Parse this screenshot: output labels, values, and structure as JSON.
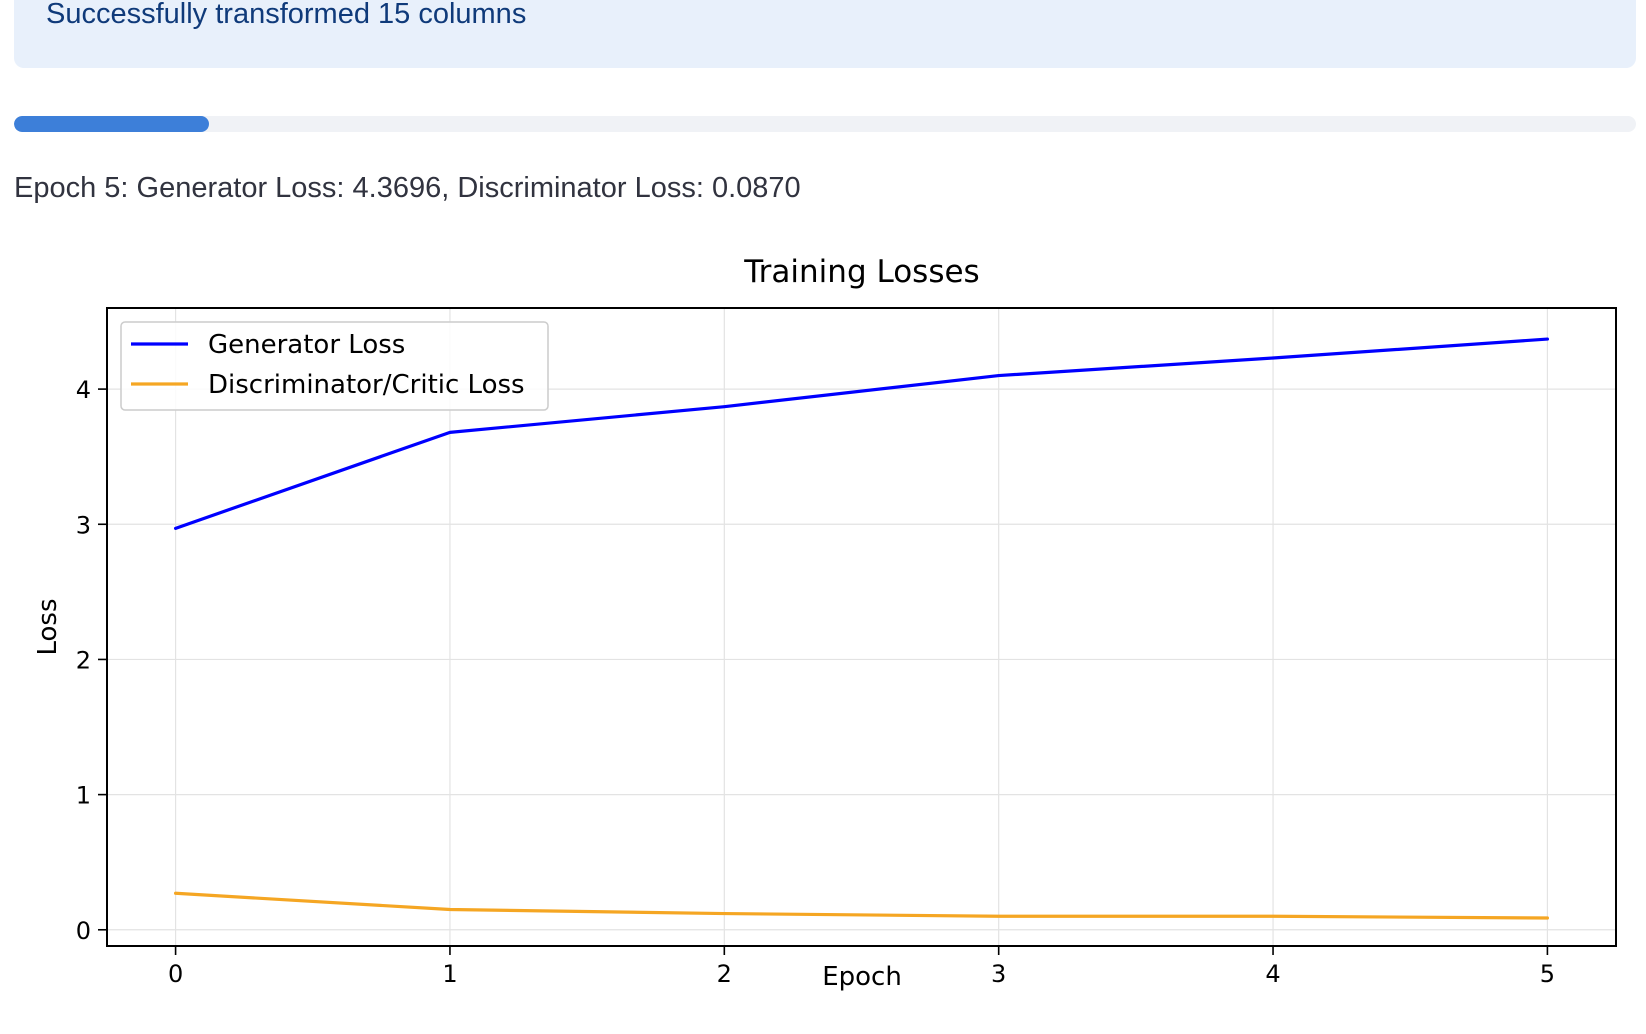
{
  "alert": {
    "message": "Successfully transformed 15 columns"
  },
  "progress": {
    "fraction": 0.12
  },
  "status": {
    "text": "Epoch 5: Generator Loss: 4.3696, Discriminator Loss: 0.0870"
  },
  "colors": {
    "alert_bg": "#e8f0fb",
    "alert_text": "#0f3a7a",
    "progress_fill": "#3d7fd9",
    "generator": "#0000ff",
    "discriminator": "#f5a623"
  },
  "chart_data": {
    "type": "line",
    "title": "Training Losses",
    "xlabel": "Epoch",
    "ylabel": "Loss",
    "x": [
      0,
      1,
      2,
      3,
      4,
      5
    ],
    "xlim": [
      -0.25,
      5.25
    ],
    "ylim": [
      -0.12,
      4.6
    ],
    "xticks": [
      "0",
      "1",
      "2",
      "3",
      "4",
      "5"
    ],
    "yticks": [
      "0",
      "1",
      "2",
      "3",
      "4"
    ],
    "grid": true,
    "legend_position": "top-left",
    "series": [
      {
        "name": "Generator Loss",
        "color": "#0000ff",
        "values": [
          2.97,
          3.68,
          3.87,
          4.1,
          4.23,
          4.37
        ]
      },
      {
        "name": "Discriminator/Critic Loss",
        "color": "#f5a623",
        "values": [
          0.27,
          0.15,
          0.12,
          0.1,
          0.1,
          0.087
        ]
      }
    ]
  }
}
